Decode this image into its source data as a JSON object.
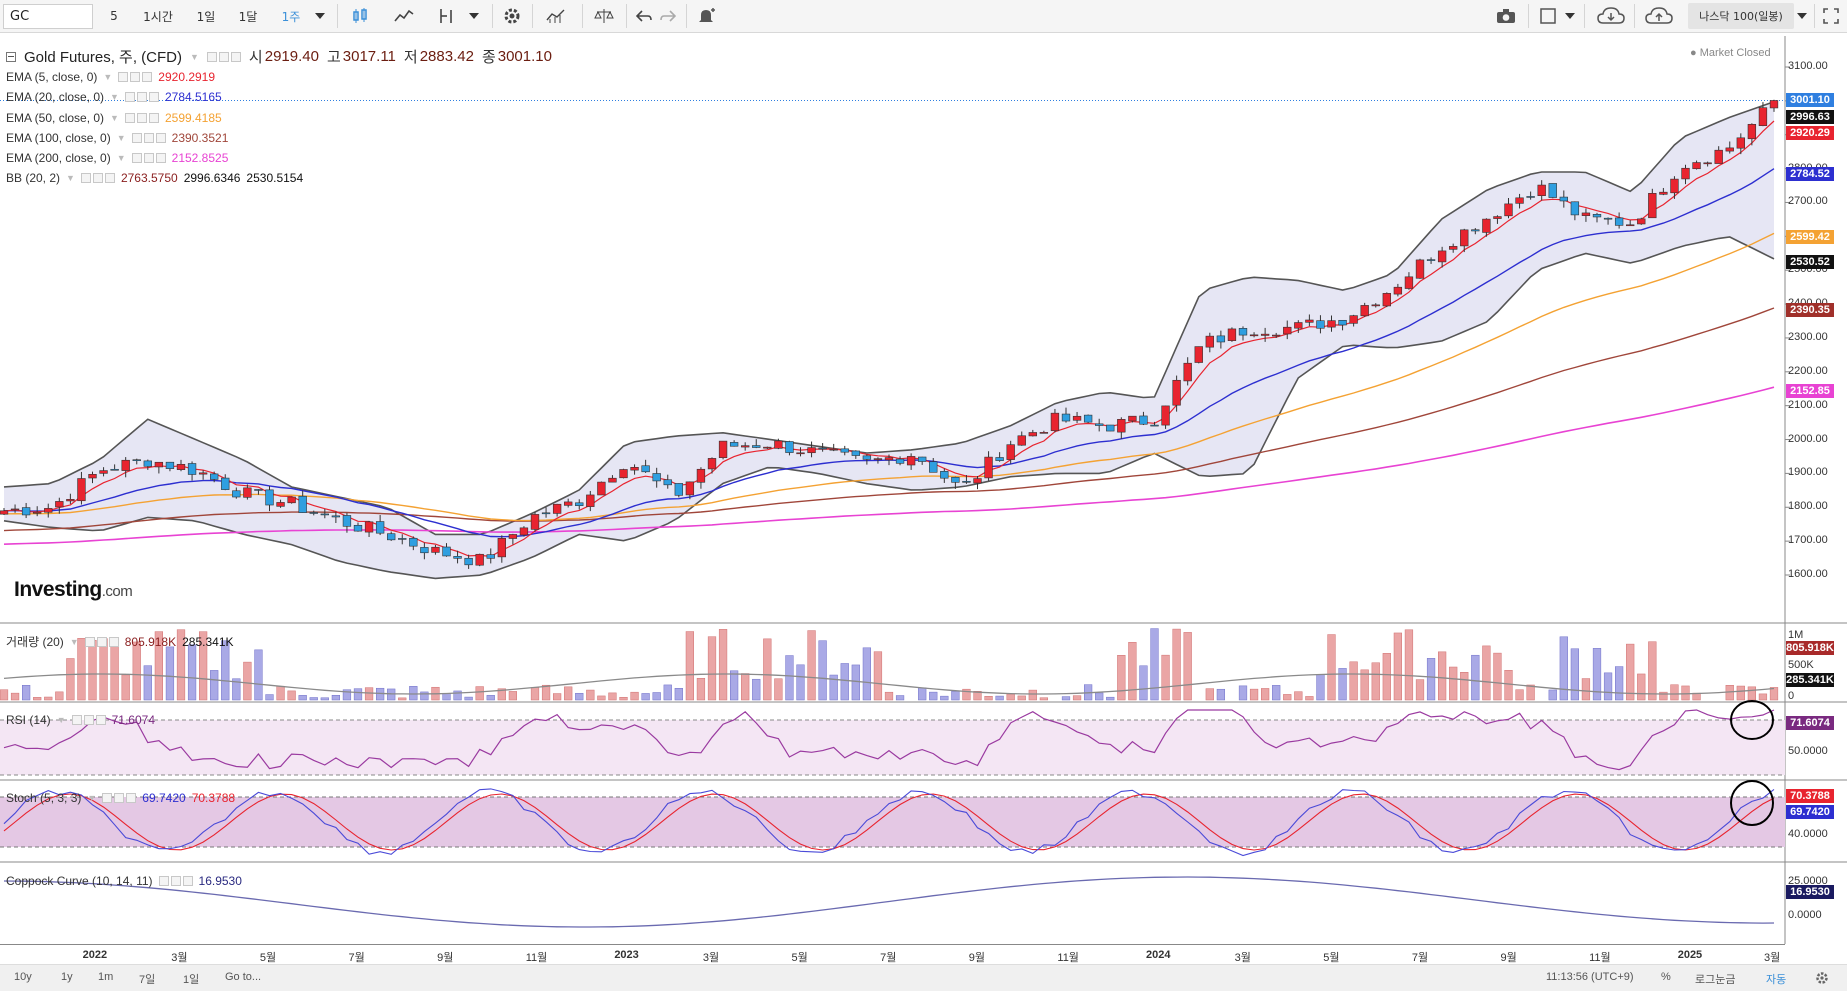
{
  "toolbar": {
    "symbol": "GC",
    "intervals": [
      "5",
      "1시간",
      "1일",
      "1달",
      "1주"
    ],
    "active_interval": "1주",
    "compare_label": "나스닥 100(일봉)"
  },
  "title": {
    "instrument": "Gold Futures, 주, (CFD)",
    "open_label": "시",
    "open": "2919.40",
    "high_label": "고",
    "high": "3017.11",
    "low_label": "저",
    "low": "2883.42",
    "close_label": "종",
    "close": "3001.10",
    "status": "Market Closed"
  },
  "indicators": [
    {
      "name": "EMA (5, close, 0)",
      "value": "2920.2919",
      "color": "#e8242f"
    },
    {
      "name": "EMA (20, close, 0)",
      "value": "2784.5165",
      "color": "#2d2fd0"
    },
    {
      "name": "EMA (50, close, 0)",
      "value": "2599.4185",
      "color": "#f4a233"
    },
    {
      "name": "EMA (100, close, 0)",
      "value": "2390.3521",
      "color": "#a0463a"
    },
    {
      "name": "EMA (200, close, 0)",
      "value": "2152.8525",
      "color": "#e843d3"
    },
    {
      "name": "BB (20, 2)",
      "values": [
        "2763.5750",
        "2996.6346",
        "2530.5154"
      ],
      "color": "#555555"
    }
  ],
  "price_axis": {
    "ticks": [
      "3100.00",
      "3000.00",
      "2900.00",
      "2800.00",
      "2700.00",
      "2600.00",
      "2500.00",
      "2400.00",
      "2300.00",
      "2200.00",
      "2100.00",
      "2000.00",
      "1900.00",
      "1800.00",
      "1700.00",
      "1600.00"
    ],
    "tags": [
      {
        "text": "3001.10",
        "color": "#2f7fe0"
      },
      {
        "text": "2996.63",
        "color": "#111111"
      },
      {
        "text": "2920.29",
        "color": "#e8242f"
      },
      {
        "text": "2784.52",
        "color": "#2d2fd0"
      },
      {
        "text": "2599.42",
        "color": "#f4a233"
      },
      {
        "text": "2530.52",
        "color": "#111111"
      },
      {
        "text": "2390.35",
        "color": "#a0302a"
      },
      {
        "text": "2152.85",
        "color": "#e843d3"
      }
    ]
  },
  "panes": {
    "volume": {
      "name": "거래량 (20)",
      "values": [
        "805.918K",
        "285.341K"
      ],
      "ticks": [
        "1M",
        "500K",
        "0"
      ],
      "tags": [
        "805.918K",
        "285.341K"
      ]
    },
    "rsi": {
      "name": "RSI (14)",
      "value": "71.6074",
      "ticks": [
        "50.0000"
      ],
      "tag": "71.6074"
    },
    "stoch": {
      "name": "Stoch (5, 3, 3)",
      "values": [
        "69.7420",
        "70.3788"
      ],
      "ticks": [
        "40.0000"
      ],
      "tags": [
        "70.3788",
        "69.7420"
      ]
    },
    "coppock": {
      "name": "Coppock Curve (10, 14, 11)",
      "value": "16.9530",
      "ticks": [
        "25.0000",
        "0.0000"
      ],
      "tag": "16.9530"
    }
  },
  "time_axis": [
    "2022",
    "3월",
    "5월",
    "7월",
    "9월",
    "11월",
    "2023",
    "3월",
    "5월",
    "7월",
    "9월",
    "11월",
    "2024",
    "3월",
    "5월",
    "7월",
    "9월",
    "11월",
    "2025",
    "3월"
  ],
  "bottom_bar": {
    "ranges": [
      "10y",
      "1y",
      "1m",
      "7일",
      "1일"
    ],
    "goto": "Go to...",
    "clock": "11:13:56 (UTC+9)",
    "percent": "%",
    "log": "로그눈금",
    "auto": "자동"
  },
  "watermark": {
    "brand": "Investing",
    "suffix": ".com"
  },
  "chart_data": {
    "type": "candlestick",
    "title": "Gold Futures, 주, (CFD)",
    "ylim": [
      1580,
      3150
    ],
    "months_start": "2021-11",
    "monthly_close": [
      1790,
      1800,
      1910,
      1940,
      1910,
      1840,
      1810,
      1760,
      1720,
      1670,
      1640,
      1770,
      1820,
      1940,
      1830,
      1980,
      1990,
      1960,
      1930,
      1960,
      1850,
      1990,
      2060,
      2040,
      2060,
      2280,
      2330,
      2330,
      2360,
      2450,
      2570,
      2660,
      2750,
      2650,
      2640,
      2810,
      2860,
      3001
    ],
    "bb_upper_monthly": [
      1860,
      1870,
      1940,
      2060,
      2000,
      1940,
      1860,
      1830,
      1800,
      1720,
      1720,
      1780,
      1850,
      1990,
      2010,
      2020,
      2000,
      1980,
      1960,
      1970,
      1990,
      2040,
      2110,
      2140,
      2120,
      2440,
      2480,
      2470,
      2440,
      2490,
      2650,
      2740,
      2790,
      2790,
      2730,
      2890,
      2950,
      3000
    ],
    "bb_lower_monthly": [
      1760,
      1740,
      1730,
      1770,
      1760,
      1720,
      1690,
      1640,
      1610,
      1590,
      1600,
      1650,
      1720,
      1700,
      1760,
      1870,
      1920,
      1900,
      1870,
      1850,
      1860,
      1890,
      1900,
      1900,
      1960,
      1890,
      1900,
      2180,
      2280,
      2270,
      2290,
      2350,
      2500,
      2550,
      2520,
      2570,
      2600,
      2530
    ]
  }
}
